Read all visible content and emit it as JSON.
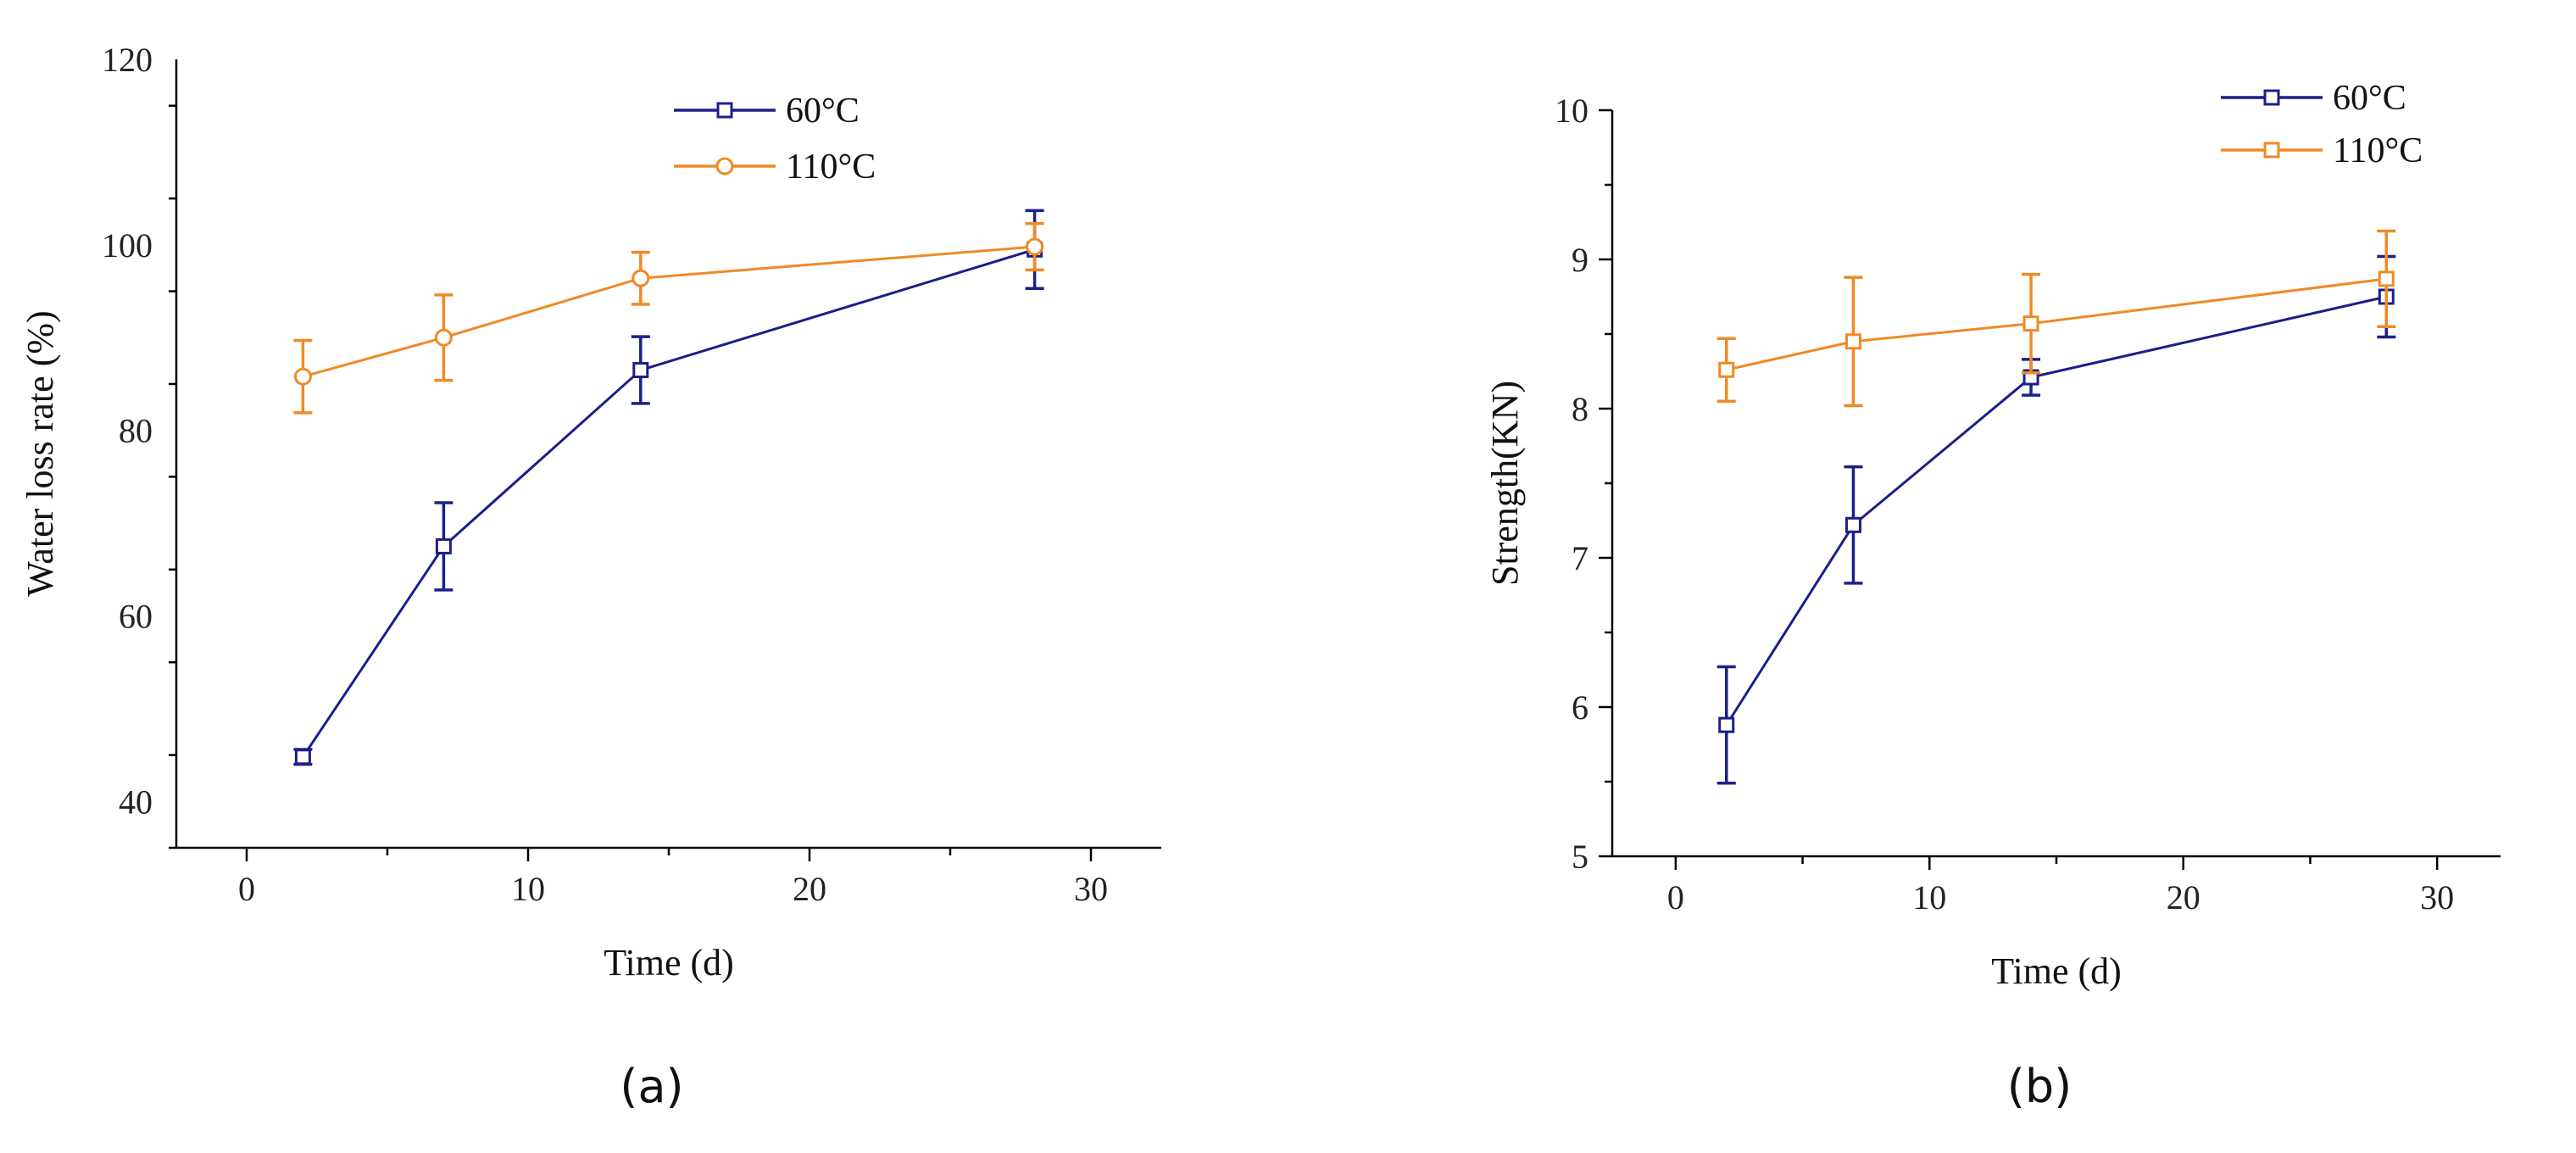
{
  "colors": {
    "s60": "#1b1f8a",
    "s110": "#f08a24",
    "axis": "#000000"
  },
  "chart_data": [
    {
      "type": "line",
      "panel_label": "(a)",
      "title": "",
      "xlabel": "Time (d)",
      "ylabel": "Water loss rate (%)",
      "xlim": [
        -2.5,
        32.5
      ],
      "ylim": [
        35,
        120
      ],
      "xticks": [
        0,
        10,
        20,
        30
      ],
      "yticks": [
        40,
        60,
        80,
        100,
        120
      ],
      "x_minor_step": 5,
      "y_minor_step": 10,
      "legend_position": "top-right",
      "series": [
        {
          "name": "60°C",
          "marker": "square",
          "x": [
            2,
            7,
            14,
            28
          ],
          "y": [
            44.8,
            67.5,
            86.5,
            99.5
          ],
          "err": [
            0.8,
            4.7,
            3.6,
            4.2
          ]
        },
        {
          "name": "110°C",
          "marker": "circle",
          "x": [
            2,
            7,
            14,
            28
          ],
          "y": [
            85.8,
            90.0,
            96.4,
            99.8
          ],
          "err": [
            3.9,
            4.6,
            2.8,
            2.5
          ]
        }
      ]
    },
    {
      "type": "line",
      "panel_label": "(b)",
      "title": "",
      "xlabel": "Time (d)",
      "ylabel": "Strength(KN)",
      "xlim": [
        -2.5,
        32.5
      ],
      "ylim": [
        5,
        10
      ],
      "xticks": [
        0,
        10,
        20,
        30
      ],
      "yticks": [
        5,
        6,
        7,
        8,
        9,
        10
      ],
      "x_minor_step": 5,
      "y_minor_step": 0.5,
      "legend_position": "top-right",
      "series": [
        {
          "name": "60°C",
          "marker": "square",
          "x": [
            2,
            7,
            14,
            28
          ],
          "y": [
            5.88,
            7.22,
            8.21,
            8.75
          ],
          "err": [
            0.39,
            0.39,
            0.12,
            0.27
          ]
        },
        {
          "name": "110°C",
          "marker": "square",
          "x": [
            2,
            7,
            14,
            28
          ],
          "y": [
            8.26,
            8.45,
            8.57,
            8.87
          ],
          "err": [
            0.21,
            0.43,
            0.33,
            0.32
          ]
        }
      ]
    }
  ]
}
